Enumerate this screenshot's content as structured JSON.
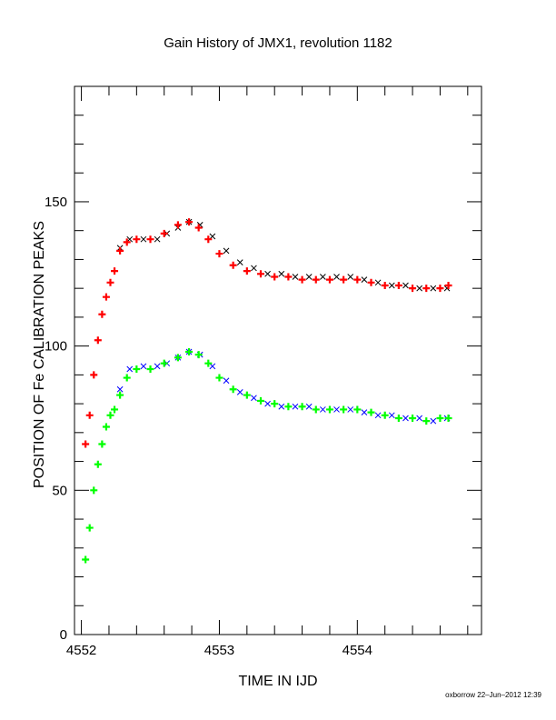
{
  "chart_data": {
    "type": "scatter",
    "title": "Gain History of JMX1, revolution 1182",
    "xlabel": "TIME IN IJD",
    "ylabel": "POSITION OF Fe CALIBRATION PEAKS",
    "xlim": [
      4551.95,
      4554.9
    ],
    "ylim": [
      0,
      190
    ],
    "xticks": [
      4552,
      4553,
      4554
    ],
    "xtick_labels": [
      "4552",
      "4553",
      "4554"
    ],
    "yticks": [
      0,
      50,
      100,
      150
    ],
    "ytick_labels": [
      "0",
      "50",
      "100",
      "150"
    ],
    "grid": false,
    "legend": "none",
    "footer": "oxborrow 22–Jun–2012 12:39",
    "series": [
      {
        "role": "upper-raw",
        "color": "#000000",
        "marker": "x",
        "x": [
          4552.28,
          4552.35,
          4552.45,
          4552.55,
          4552.62,
          4552.7,
          4552.78,
          4552.86,
          4552.95,
          4553.05,
          4553.15,
          4553.25,
          4553.35,
          4553.45,
          4553.55,
          4553.65,
          4553.75,
          4553.85,
          4553.95,
          4554.05,
          4554.15,
          4554.25,
          4554.35,
          4554.45,
          4554.55,
          4554.65
        ],
        "y": [
          134,
          137,
          137,
          137,
          139,
          141,
          143,
          142,
          138,
          133,
          129,
          127,
          125,
          125,
          124,
          124,
          124,
          124,
          124,
          123,
          122,
          121,
          121,
          120,
          120,
          120
        ]
      },
      {
        "role": "upper-fit",
        "color": "#ff0000",
        "marker": "+",
        "x": [
          4552.03,
          4552.06,
          4552.09,
          4552.12,
          4552.15,
          4552.18,
          4552.21,
          4552.24,
          4552.28,
          4552.33,
          4552.4,
          4552.5,
          4552.6,
          4552.7,
          4552.78,
          4552.85,
          4552.92,
          4553.0,
          4553.1,
          4553.2,
          4553.3,
          4553.4,
          4553.5,
          4553.6,
          4553.7,
          4553.8,
          4553.9,
          4554.0,
          4554.1,
          4554.2,
          4554.3,
          4554.4,
          4554.5,
          4554.6,
          4554.66
        ],
        "y": [
          66,
          76,
          90,
          102,
          111,
          117,
          122,
          126,
          133,
          136,
          137,
          137,
          139,
          142,
          143,
          141,
          137,
          132,
          128,
          126,
          125,
          124,
          124,
          123,
          123,
          123,
          123,
          123,
          122,
          121,
          121,
          120,
          120,
          120,
          121
        ]
      },
      {
        "role": "lower-raw",
        "color": "#0000ff",
        "marker": "x",
        "x": [
          4552.28,
          4552.35,
          4552.45,
          4552.55,
          4552.62,
          4552.7,
          4552.78,
          4552.86,
          4552.95,
          4553.05,
          4553.15,
          4553.25,
          4553.35,
          4553.45,
          4553.55,
          4553.65,
          4553.75,
          4553.85,
          4553.95,
          4554.05,
          4554.15,
          4554.25,
          4554.35,
          4554.45,
          4554.55,
          4554.65
        ],
        "y": [
          85,
          92,
          93,
          93,
          94,
          96,
          98,
          97,
          93,
          88,
          84,
          82,
          80,
          79,
          79,
          79,
          78,
          78,
          78,
          77,
          76,
          76,
          75,
          75,
          74,
          75
        ]
      },
      {
        "role": "lower-fit",
        "color": "#00ff00",
        "marker": "+",
        "x": [
          4552.03,
          4552.06,
          4552.09,
          4552.12,
          4552.15,
          4552.18,
          4552.21,
          4552.24,
          4552.28,
          4552.33,
          4552.4,
          4552.5,
          4552.6,
          4552.7,
          4552.78,
          4552.85,
          4552.92,
          4553.0,
          4553.1,
          4553.2,
          4553.3,
          4553.4,
          4553.5,
          4553.6,
          4553.7,
          4553.8,
          4553.9,
          4554.0,
          4554.1,
          4554.2,
          4554.3,
          4554.4,
          4554.5,
          4554.6,
          4554.66
        ],
        "y": [
          26,
          37,
          50,
          59,
          66,
          72,
          76,
          78,
          83,
          89,
          92,
          92,
          94,
          96,
          98,
          97,
          94,
          89,
          85,
          83,
          81,
          80,
          79,
          79,
          78,
          78,
          78,
          78,
          77,
          76,
          75,
          75,
          74,
          75,
          75
        ]
      }
    ]
  }
}
